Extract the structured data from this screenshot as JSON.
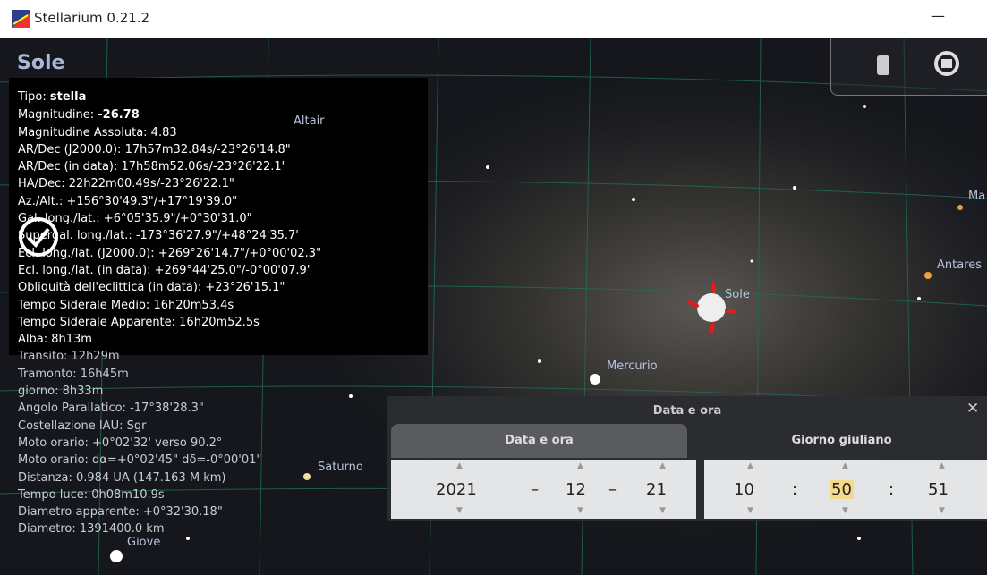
{
  "window": {
    "title": "Stellarium 0.21.2",
    "minimize": "—"
  },
  "object_name": "Sole",
  "info": {
    "type_label": "Tipo:",
    "type_value": "stella",
    "magnitude_label": "Magnitudine:",
    "magnitude_value": "-26.78",
    "lines": [
      "Magnitudine Assoluta: 4.83",
      "AR/Dec (J2000.0): 17h57m32.84s/-23°26'14.8\"",
      "AR/Dec (in data): 17h58m52.06s/-23°26'22.1'",
      "HA/Dec: 22h22m00.49s/-23°26'22.1\"",
      "Az./Alt.: +156°30'49.3\"/+17°19'39.0\"",
      "Gal. long./lat.: +6°05'35.9\"/+0°30'31.0\"",
      "Supergal. long./lat.: -173°36'27.9\"/+48°24'35.7'",
      "Ecl. long./lat. (J2000.0): +269°26'14.7\"/+0°00'02.3\"",
      "Ecl. long./lat. (in data): +269°44'25.0\"/-0°00'07.9'",
      "Obliquità dell'eclittica (in data): +23°26'15.1\"",
      "Tempo Siderale Medio: 16h20m53.4s",
      "Tempo Siderale Apparente: 16h20m52.5s",
      "Alba: 8h13m",
      "Transito: 12h29m",
      "Tramonto: 16h45m",
      "giorno: 8h33m",
      "Angolo Parallatico: -17°38'28.3\"",
      "Costellazione IAU: Sgr",
      "Moto orario: +0°02'32' verso 90.2°",
      "Moto orario: dα=+0°02'45\" dδ=-0°00'01\"",
      "Distanza: 0.984 UA (147.163 M km)",
      "Tempo luce: 0h08m10.9s",
      "Diametro apparente: +0°32'30.18\"",
      "Diametro: 1391400.0 km"
    ]
  },
  "sky_labels": [
    "Altair",
    "Sole",
    "Mercurio",
    "Saturno",
    "Giove",
    "Antares",
    "Ma"
  ],
  "dialog": {
    "title": "Data e ora",
    "close": "✕",
    "tabs": [
      "Data e ora",
      "Giorno giuliano"
    ],
    "date": {
      "year": "2021",
      "month": "12",
      "day": "21",
      "separator": "–"
    },
    "time": {
      "hour": "10",
      "minute": "50",
      "second": "51",
      "separator": ":"
    }
  }
}
